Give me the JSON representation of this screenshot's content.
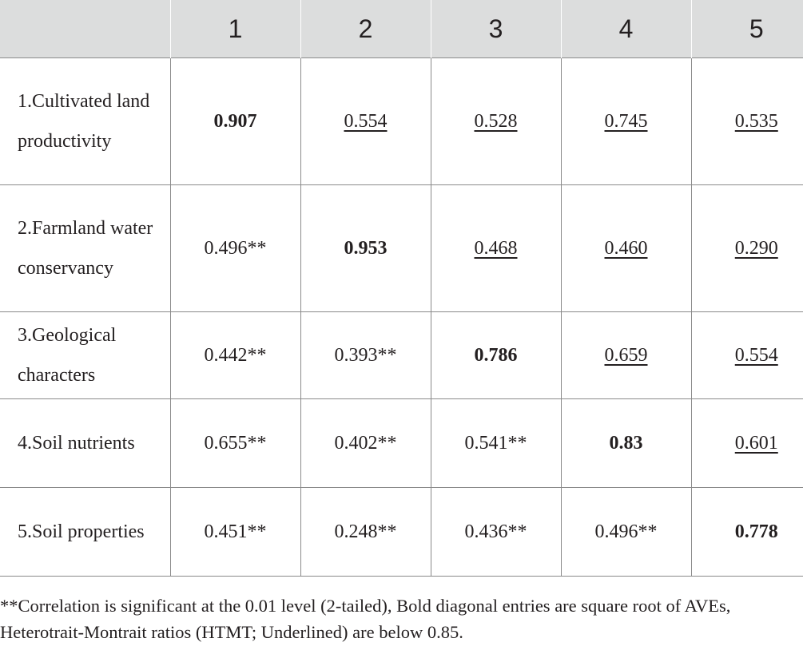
{
  "table": {
    "headers": [
      "",
      "1",
      "2",
      "3",
      "4",
      "5"
    ],
    "rows": [
      {
        "label": "1.Cultivated land productivity",
        "cells": [
          "0.907",
          "0.554",
          "0.528",
          "0.745",
          "0.535"
        ]
      },
      {
        "label": "2.Farmland water conservancy",
        "cells": [
          "0.496**",
          "0.953",
          "0.468",
          "0.460",
          "0.290"
        ]
      },
      {
        "label": "3.Geological characters",
        "cells": [
          "0.442**",
          "0.393**",
          "0.786",
          "0.659",
          "0.554"
        ]
      },
      {
        "label": "4.Soil nutrients",
        "cells": [
          "0.655**",
          "0.402**",
          "0.541**",
          "0.83",
          "0.601"
        ]
      },
      {
        "label": "5.Soil properties",
        "cells": [
          "0.451**",
          "0.248**",
          "0.436**",
          "0.496**",
          "0.778"
        ]
      }
    ]
  },
  "footnote": "**Correlation is significant at the 0.01 level (2-tailed), Bold diagonal entries are square root of AVEs, Heterotrait-Montrait ratios (HTMT; Underlined) are below 0.85.",
  "colors": {
    "header_bg": "#dcdddd",
    "border": "#8a8a8a",
    "text": "#231f20"
  }
}
